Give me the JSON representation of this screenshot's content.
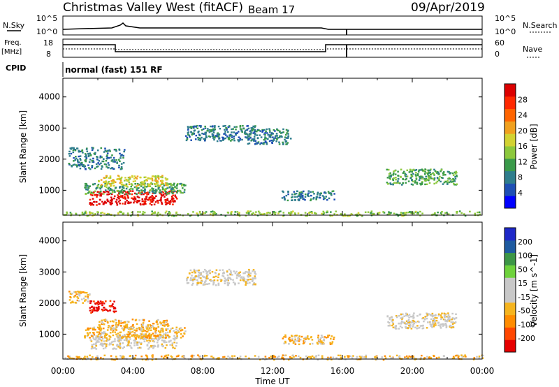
{
  "header": {
    "title": "Christmas Valley West (fitACF)",
    "beam": "Beam 17",
    "date": "09/Apr/2019"
  },
  "strip_labels": {
    "nsky": "N.Sky",
    "nsearch": "N.Search",
    "freq_line1": "Freq.",
    "freq_line2": "[MHz]",
    "nave": "Nave",
    "cpid_label": "CPID",
    "cpid_value": "normal (fast) 151 RF",
    "noise_ticks": [
      "10^5",
      "10^0"
    ],
    "freq_ticks": [
      "18",
      "8"
    ],
    "nave_ticks": [
      "60",
      "0"
    ]
  },
  "colors": {
    "power": [
      "#0000ff",
      "#1e4fb4",
      "#2e7d8c",
      "#3a9a4a",
      "#8cc83c",
      "#d2d232",
      "#f0a01e",
      "#ff6400",
      "#ff2800",
      "#dc0000"
    ],
    "velocity": [
      "#e60000",
      "#ff4600",
      "#ff8c00",
      "#f5b41e",
      "#c8c8c8",
      "#c8c8c8",
      "#6ed23c",
      "#3c9646",
      "#1e5aa0",
      "#1e28c8"
    ]
  },
  "chart_data": [
    {
      "type": "heatmap",
      "panel": "power",
      "ylabel": "Slant Range [km]",
      "ylim": [
        200,
        4600
      ],
      "yticks": [
        "4000",
        "3000",
        "2000",
        "1000"
      ],
      "xlim": [
        0,
        24
      ],
      "colorbar_label": "Power [dB]",
      "colorbar_ticks": [
        "28",
        "24",
        "20",
        "16",
        "12",
        "8",
        "4"
      ],
      "regions": [
        {
          "t0": 1.5,
          "t1": 6.5,
          "r0": 550,
          "r1": 1000,
          "level": 9
        },
        {
          "t0": 1.2,
          "t1": 7.0,
          "r0": 900,
          "r1": 1250,
          "level": 3
        },
        {
          "t0": 2.0,
          "t1": 6.0,
          "r0": 1150,
          "r1": 1500,
          "level": 5
        },
        {
          "t0": 0.3,
          "t1": 3.5,
          "r0": 1700,
          "r1": 2400,
          "level": 2
        },
        {
          "t0": 7.0,
          "t1": 11.0,
          "r0": 2600,
          "r1": 3100,
          "level": 2
        },
        {
          "t0": 10.5,
          "t1": 13.0,
          "r0": 2500,
          "r1": 3000,
          "level": 2
        },
        {
          "t0": 12.5,
          "t1": 15.5,
          "r0": 700,
          "r1": 1000,
          "level": 2
        },
        {
          "t0": 18.5,
          "t1": 22.5,
          "r0": 1200,
          "r1": 1700,
          "level": 3
        },
        {
          "t0": 0.0,
          "t1": 24.0,
          "r0": 200,
          "r1": 350,
          "level": 4
        }
      ]
    },
    {
      "type": "heatmap",
      "panel": "velocity",
      "ylabel": "Slant Range [km]",
      "ylim": [
        200,
        4600
      ],
      "yticks": [
        "4000",
        "3000",
        "2000",
        "1000"
      ],
      "xlim": [
        0,
        24
      ],
      "xticks": [
        "00:00",
        "04:00",
        "08:00",
        "12:00",
        "16:00",
        "20:00",
        "00:00"
      ],
      "xlabel": "Time UT",
      "colorbar_label": "Velocity [m s^-1]",
      "colorbar_ticks": [
        "200",
        "100",
        "50",
        "15",
        "-15",
        "-50",
        "-100",
        "-200"
      ],
      "regions": [
        {
          "t0": 1.5,
          "t1": 6.5,
          "r0": 550,
          "r1": 1000,
          "level": 4
        },
        {
          "t0": 1.2,
          "t1": 7.0,
          "r0": 900,
          "r1": 1250,
          "level": 3
        },
        {
          "t0": 2.0,
          "t1": 6.0,
          "r0": 1150,
          "r1": 1500,
          "level": 3
        },
        {
          "t0": 1.5,
          "t1": 3.0,
          "r0": 1700,
          "r1": 2100,
          "level": 0
        },
        {
          "t0": 0.3,
          "t1": 1.5,
          "r0": 2000,
          "r1": 2400,
          "level": 3
        },
        {
          "t0": 7.0,
          "t1": 11.0,
          "r0": 2600,
          "r1": 3100,
          "level": 4
        },
        {
          "t0": 12.5,
          "t1": 15.5,
          "r0": 700,
          "r1": 1000,
          "level": 3
        },
        {
          "t0": 18.5,
          "t1": 22.5,
          "r0": 1200,
          "r1": 1700,
          "level": 4
        },
        {
          "t0": 0.0,
          "t1": 24.0,
          "r0": 200,
          "r1": 350,
          "level": 3
        }
      ]
    }
  ]
}
